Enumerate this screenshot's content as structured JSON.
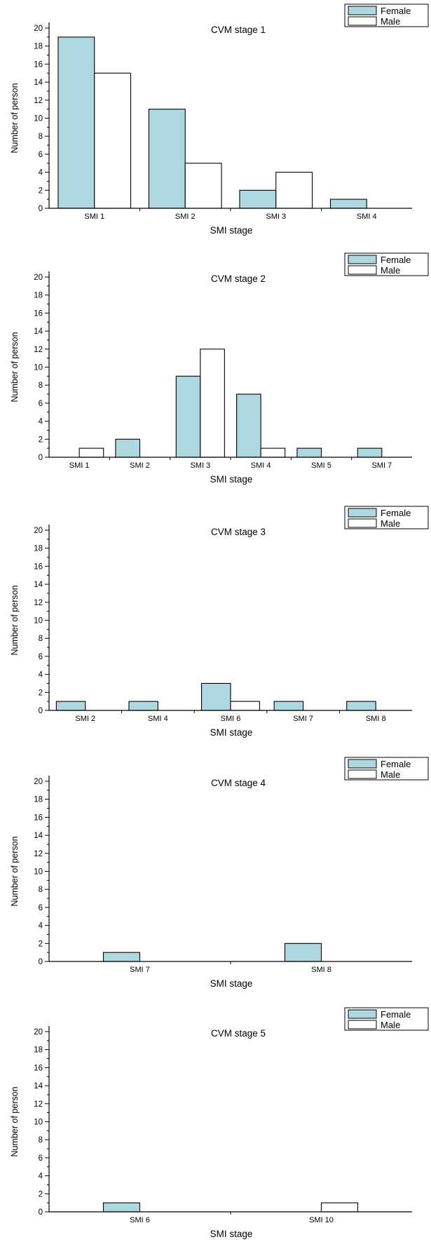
{
  "chart_data": [
    {
      "type": "bar",
      "title": "CVM stage 1",
      "xlabel": "SMI stage",
      "ylabel": "Number of person",
      "ylim": [
        0,
        20
      ],
      "yticks": [
        "0",
        "2",
        "4",
        "6",
        "8",
        "10",
        "12",
        "14",
        "16",
        "18",
        "20"
      ],
      "legend_position": "top-right",
      "categories": [
        "SMI 1",
        "SMI 2",
        "SMI 3",
        "SMI 4"
      ],
      "series": [
        {
          "name": "Female",
          "color": "#add8e0",
          "values": [
            19,
            11,
            2,
            1
          ]
        },
        {
          "name": "Male",
          "color": "#ffffff",
          "values": [
            15,
            5,
            4,
            0
          ]
        }
      ]
    },
    {
      "type": "bar",
      "title": "CVM stage 2",
      "xlabel": "SMI stage",
      "ylabel": "Number of person",
      "ylim": [
        0,
        20
      ],
      "yticks": [
        "0",
        "2",
        "4",
        "6",
        "8",
        "10",
        "12",
        "14",
        "16",
        "18",
        "20"
      ],
      "legend_position": "top-right",
      "categories": [
        "SMI 1",
        "SMI 2",
        "SMI 3",
        "SMI 4",
        "SMI 5",
        "SMI 7"
      ],
      "series": [
        {
          "name": "Female",
          "color": "#add8e0",
          "values": [
            0,
            2,
            9,
            7,
            1,
            1
          ]
        },
        {
          "name": "Male",
          "color": "#ffffff",
          "values": [
            1,
            0,
            12,
            1,
            0,
            0
          ]
        }
      ]
    },
    {
      "type": "bar",
      "title": "CVM stage 3",
      "xlabel": "SMI stage",
      "ylabel": "Number of person",
      "ylim": [
        0,
        20
      ],
      "yticks": [
        "0",
        "2",
        "4",
        "6",
        "8",
        "10",
        "12",
        "14",
        "16",
        "18",
        "20"
      ],
      "legend_position": "top-right",
      "categories": [
        "SMI 2",
        "SMI 4",
        "SMI 6",
        "SMI 7",
        "SMI 8"
      ],
      "series": [
        {
          "name": "Female",
          "color": "#add8e0",
          "values": [
            1,
            1,
            3,
            1,
            1
          ]
        },
        {
          "name": "Male",
          "color": "#ffffff",
          "values": [
            0,
            0,
            1,
            0,
            0
          ]
        }
      ]
    },
    {
      "type": "bar",
      "title": "CVM stage 4",
      "xlabel": "SMI stage",
      "ylabel": "Number of person",
      "ylim": [
        0,
        20
      ],
      "yticks": [
        "0",
        "2",
        "4",
        "6",
        "8",
        "10",
        "12",
        "14",
        "16",
        "18",
        "20"
      ],
      "legend_position": "top-right",
      "categories": [
        "SMI 7",
        "SMI 8"
      ],
      "series": [
        {
          "name": "Female",
          "color": "#add8e0",
          "values": [
            1,
            2
          ]
        },
        {
          "name": "Male",
          "color": "#ffffff",
          "values": [
            0,
            0
          ]
        }
      ]
    },
    {
      "type": "bar",
      "title": "CVM stage 5",
      "xlabel": "SMI stage",
      "ylabel": "Number of person",
      "ylim": [
        0,
        20
      ],
      "yticks": [
        "0",
        "2",
        "4",
        "6",
        "8",
        "10",
        "12",
        "14",
        "16",
        "18",
        "20"
      ],
      "legend_position": "top-right",
      "categories": [
        "SMI 6",
        "SMI 10"
      ],
      "series": [
        {
          "name": "Female",
          "color": "#add8e0",
          "values": [
            1,
            0
          ]
        },
        {
          "name": "Male",
          "color": "#ffffff",
          "values": [
            0,
            1
          ]
        }
      ]
    }
  ]
}
